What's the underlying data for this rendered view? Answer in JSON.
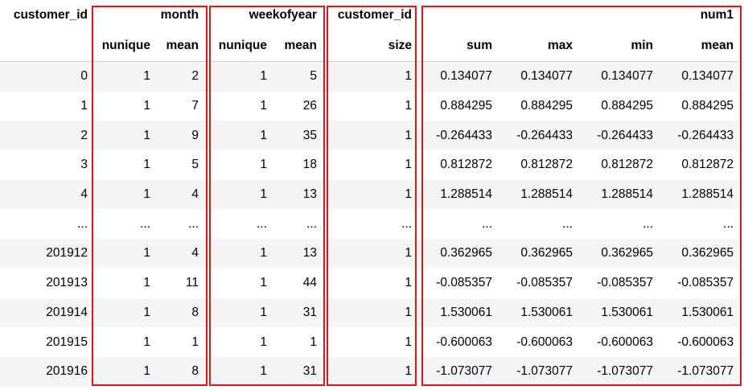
{
  "header_row1": {
    "index_label": "customer_id",
    "month": "month",
    "weekofyear": "weekofyear",
    "customer_id": "customer_id",
    "num1": "num1"
  },
  "header_row2": [
    "nunique",
    "mean",
    "nunique",
    "mean",
    "size",
    "sum",
    "max",
    "min",
    "mean"
  ],
  "rows": [
    {
      "index": "0",
      "cells": [
        "1",
        "2",
        "1",
        "5",
        "1",
        "0.134077",
        "0.134077",
        "0.134077",
        "0.134077"
      ]
    },
    {
      "index": "1",
      "cells": [
        "1",
        "7",
        "1",
        "26",
        "1",
        "0.884295",
        "0.884295",
        "0.884295",
        "0.884295"
      ]
    },
    {
      "index": "2",
      "cells": [
        "1",
        "9",
        "1",
        "35",
        "1",
        "-0.264433",
        "-0.264433",
        "-0.264433",
        "-0.264433"
      ]
    },
    {
      "index": "3",
      "cells": [
        "1",
        "5",
        "1",
        "18",
        "1",
        "0.812872",
        "0.812872",
        "0.812872",
        "0.812872"
      ]
    },
    {
      "index": "4",
      "cells": [
        "1",
        "4",
        "1",
        "13",
        "1",
        "1.288514",
        "1.288514",
        "1.288514",
        "1.288514"
      ]
    },
    {
      "index": "...",
      "cells": [
        "...",
        "...",
        "...",
        "...",
        "...",
        "...",
        "...",
        "...",
        "..."
      ]
    },
    {
      "index": "201912",
      "cells": [
        "1",
        "4",
        "1",
        "13",
        "1",
        "0.362965",
        "0.362965",
        "0.362965",
        "0.362965"
      ]
    },
    {
      "index": "201913",
      "cells": [
        "1",
        "11",
        "1",
        "44",
        "1",
        "-0.085357",
        "-0.085357",
        "-0.085357",
        "-0.085357"
      ]
    },
    {
      "index": "201914",
      "cells": [
        "1",
        "8",
        "1",
        "31",
        "1",
        "1.530061",
        "1.530061",
        "1.530061",
        "1.530061"
      ]
    },
    {
      "index": "201915",
      "cells": [
        "1",
        "1",
        "1",
        "1",
        "1",
        "-0.600063",
        "-0.600063",
        "-0.600063",
        "-0.600063"
      ]
    },
    {
      "index": "201916",
      "cells": [
        "1",
        "8",
        "1",
        "31",
        "1",
        "-1.073077",
        "-1.073077",
        "-1.073077",
        "-1.073077"
      ]
    }
  ],
  "colors": {
    "highlight_box": "#e0151a",
    "stripe": "#f5f5f5",
    "header_rule": "#cfcfcf"
  }
}
